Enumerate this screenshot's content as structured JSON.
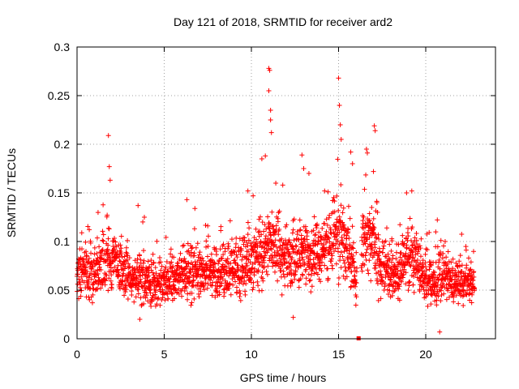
{
  "chart_data": {
    "type": "scatter",
    "title": "Day 121 of 2018, SRMTID for receiver ard2",
    "xlabel": "GPS time / hours",
    "ylabel": "SRMTID / TECUs",
    "xlim": [
      0,
      24
    ],
    "ylim": [
      0,
      0.3
    ],
    "x_ticks": [
      0,
      5,
      10,
      15,
      20
    ],
    "x_tick_labels": [
      "0",
      "5",
      "10",
      "15",
      "20"
    ],
    "y_ticks": [
      0,
      0.05,
      0.1,
      0.15,
      0.2,
      0.25,
      0.3
    ],
    "y_tick_labels": [
      "0",
      "0.05",
      "0.1",
      "0.15",
      "0.2",
      "0.25",
      "0.3"
    ],
    "grid": true,
    "marker": "+",
    "color": "#ff0000",
    "series": [
      {
        "name": "SRMTID",
        "baseline": [
          [
            0.0,
            0.072
          ],
          [
            0.5,
            0.07
          ],
          [
            1.0,
            0.068
          ],
          [
            1.5,
            0.08
          ],
          [
            2.0,
            0.08
          ],
          [
            2.5,
            0.072
          ],
          [
            3.0,
            0.06
          ],
          [
            3.5,
            0.062
          ],
          [
            4.0,
            0.058
          ],
          [
            4.5,
            0.055
          ],
          [
            5.0,
            0.058
          ],
          [
            5.5,
            0.06
          ],
          [
            6.0,
            0.065
          ],
          [
            6.5,
            0.068
          ],
          [
            7.0,
            0.066
          ],
          [
            7.5,
            0.066
          ],
          [
            8.0,
            0.068
          ],
          [
            8.5,
            0.072
          ],
          [
            9.0,
            0.07
          ],
          [
            9.5,
            0.075
          ],
          [
            10.0,
            0.078
          ],
          [
            10.5,
            0.088
          ],
          [
            11.0,
            0.095
          ],
          [
            11.5,
            0.092
          ],
          [
            12.0,
            0.08
          ],
          [
            12.5,
            0.085
          ],
          [
            13.0,
            0.09
          ],
          [
            13.5,
            0.082
          ],
          [
            14.0,
            0.088
          ],
          [
            14.5,
            0.095
          ],
          [
            15.0,
            0.105
          ],
          [
            15.5,
            0.1
          ],
          [
            16.0,
            0.06
          ],
          [
            16.5,
            0.105
          ],
          [
            17.0,
            0.1
          ],
          [
            17.5,
            0.07
          ],
          [
            18.0,
            0.068
          ],
          [
            18.5,
            0.072
          ],
          [
            19.0,
            0.085
          ],
          [
            19.5,
            0.08
          ],
          [
            20.0,
            0.06
          ],
          [
            20.5,
            0.058
          ],
          [
            21.0,
            0.065
          ],
          [
            21.5,
            0.06
          ],
          [
            22.0,
            0.055
          ],
          [
            22.5,
            0.058
          ],
          [
            22.8,
            0.055
          ]
        ],
        "gaps": [
          [
            16.05,
            16.3
          ]
        ],
        "notable_points": [
          [
            1.8,
            0.209
          ],
          [
            1.85,
            0.177
          ],
          [
            1.9,
            0.163
          ],
          [
            11.0,
            0.278
          ],
          [
            11.05,
            0.276
          ],
          [
            11.0,
            0.255
          ],
          [
            11.1,
            0.235
          ],
          [
            11.1,
            0.225
          ],
          [
            11.15,
            0.212
          ],
          [
            15.0,
            0.268
          ],
          [
            15.05,
            0.24
          ],
          [
            15.1,
            0.22
          ],
          [
            15.15,
            0.205
          ],
          [
            16.6,
            0.195
          ],
          [
            16.65,
            0.191
          ],
          [
            17.05,
            0.219
          ],
          [
            17.1,
            0.214
          ],
          [
            17.0,
            0.172
          ],
          [
            12.9,
            0.189
          ],
          [
            13.0,
            0.175
          ],
          [
            10.6,
            0.185
          ],
          [
            10.8,
            0.188
          ],
          [
            11.8,
            0.158
          ],
          [
            14.4,
            0.151
          ],
          [
            14.2,
            0.152
          ],
          [
            15.7,
            0.192
          ],
          [
            15.8,
            0.18
          ],
          [
            9.8,
            0.152
          ],
          [
            19.2,
            0.152
          ],
          [
            3.5,
            0.137
          ],
          [
            18.9,
            0.15
          ],
          [
            6.3,
            0.143
          ],
          [
            13.3,
            0.17
          ],
          [
            11.4,
            0.16
          ],
          [
            10.1,
            0.147
          ],
          [
            12.4,
            0.022
          ],
          [
            20.8,
            0.007
          ],
          [
            3.6,
            0.02
          ],
          [
            17.2,
            0.14
          ],
          [
            16.9,
            0.135
          ]
        ],
        "outlier_marker": {
          "x": 16.15,
          "y": 0.0
        }
      }
    ]
  }
}
